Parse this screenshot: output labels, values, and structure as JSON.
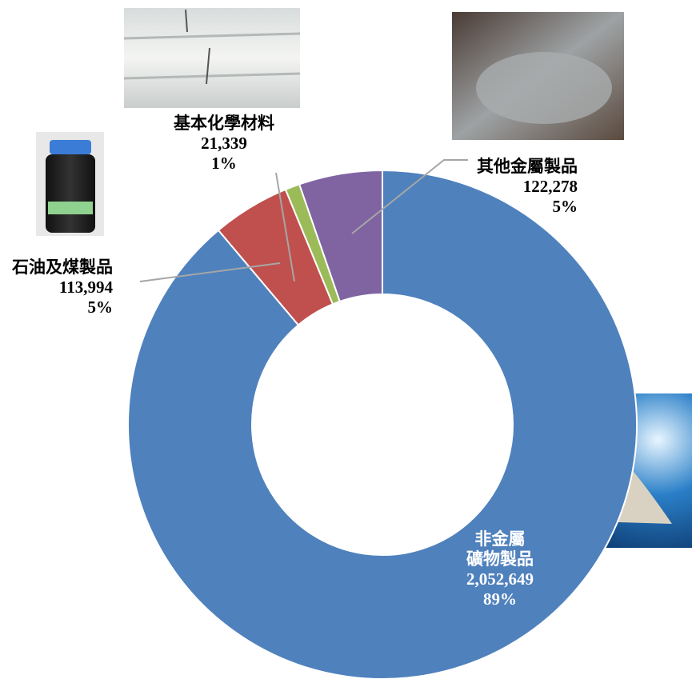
{
  "chart_data": {
    "type": "donut",
    "categories": [
      "非金屬\n礦物製品",
      "石油及煤製品",
      "基本化學材料",
      "其他金屬製品"
    ],
    "values": [
      2052649,
      113994,
      21339,
      122278
    ],
    "value_labels": [
      "2,052,649",
      "113,994",
      "21,339",
      "122,278"
    ],
    "percent_labels": [
      "89%",
      "5%",
      "1%",
      "5%"
    ],
    "colors": [
      "#4f81bd",
      "#c0504d",
      "#9bbb59",
      "#8064a2"
    ]
  }
}
